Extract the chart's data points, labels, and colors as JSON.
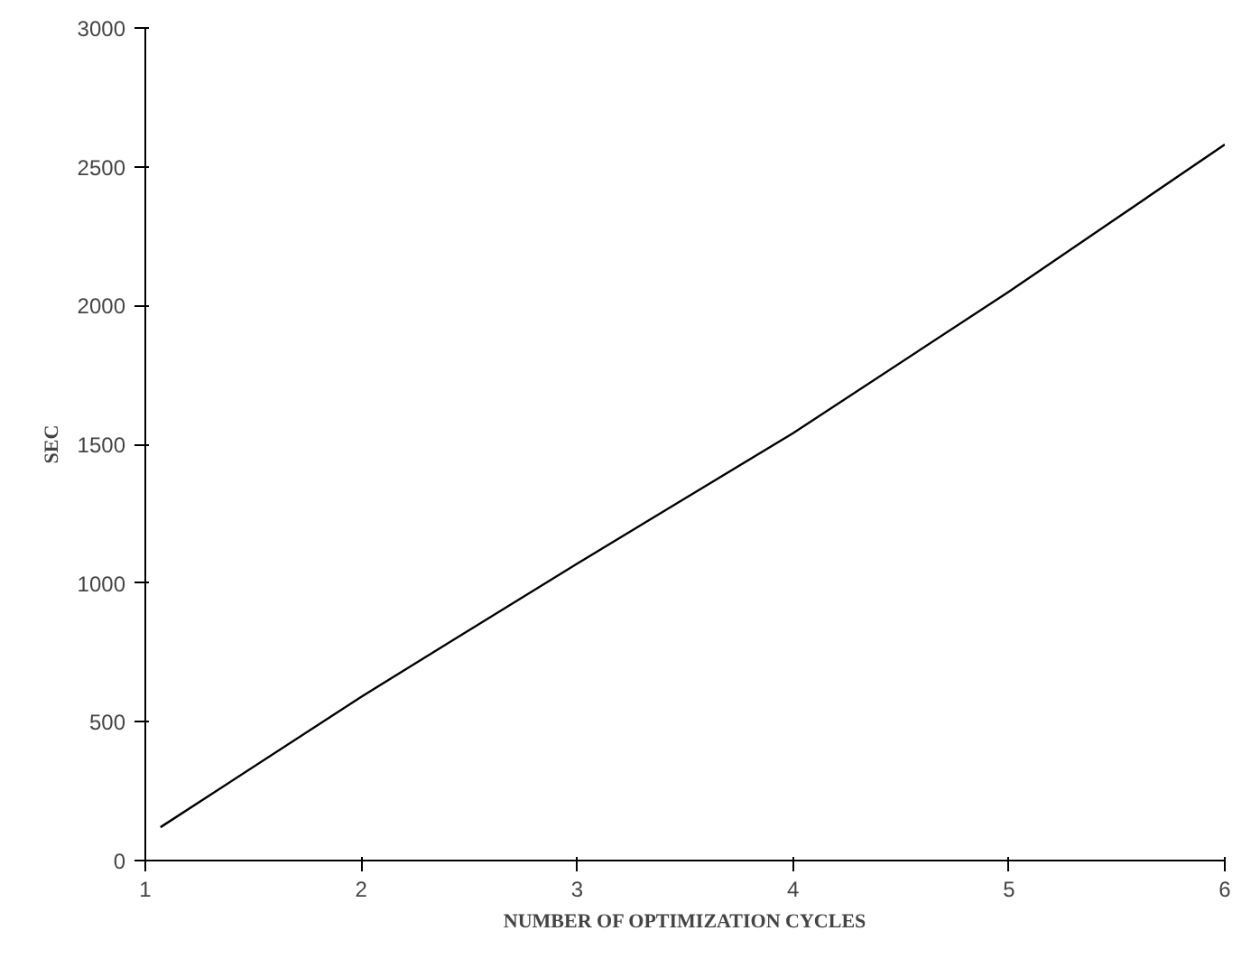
{
  "chart_data": {
    "type": "line",
    "xlabel": "NUMBER OF OPTIMIZATION CYCLES",
    "ylabel": "SEC",
    "x": [
      1.07,
      2,
      3,
      4,
      5,
      6
    ],
    "series": [
      {
        "color": "#000000",
        "values": [
          120,
          590,
          1070,
          1540,
          2050,
          2580
        ]
      }
    ],
    "xlim": [
      1,
      6
    ],
    "ylim": [
      0,
      3000
    ],
    "xticks": [
      1,
      2,
      3,
      4,
      5,
      6
    ],
    "yticks": [
      0,
      500,
      1000,
      1500,
      2000,
      2500,
      3000
    ],
    "grid": false,
    "marker": "none",
    "line_style": "solid"
  }
}
